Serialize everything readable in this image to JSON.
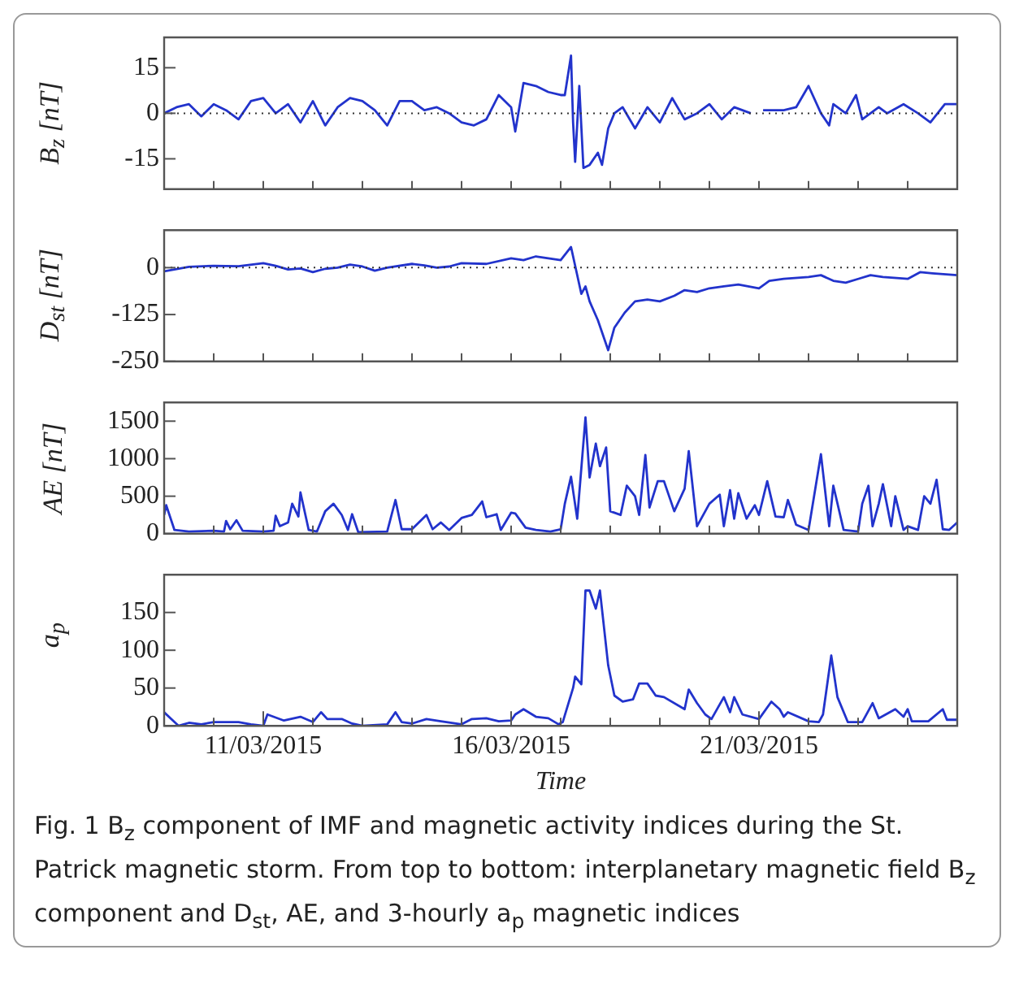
{
  "chart_data": [
    {
      "type": "line",
      "ylabel": "B$_{z}$ [nT]",
      "color": "#2233cc",
      "tick_labels": "y",
      "xlim": [
        "2015-03-09",
        "2015-03-25"
      ],
      "ylim": [
        -25,
        25
      ],
      "yticks": [
        -15,
        0,
        15
      ],
      "xticks": [
        {
          "value": "2015-03-10",
          "label": null
        },
        {
          "value": "2015-03-11",
          "label": null
        },
        {
          "value": "2015-03-12",
          "label": null
        },
        {
          "value": "2015-03-13",
          "label": null
        },
        {
          "value": "2015-03-14",
          "label": null
        },
        {
          "value": "2015-03-15",
          "label": null
        },
        {
          "value": "2015-03-16",
          "label": null
        },
        {
          "value": "2015-03-17",
          "label": null
        },
        {
          "value": "2015-03-18",
          "label": null
        },
        {
          "value": "2015-03-19",
          "label": null
        },
        {
          "value": "2015-03-20",
          "label": null
        },
        {
          "value": "2015-03-21",
          "label": null
        },
        {
          "value": "2015-03-22",
          "label": null
        },
        {
          "value": "2015-03-23",
          "label": null
        },
        {
          "value": "2015-03-24",
          "label": null
        }
      ],
      "ref_lines": [
        {
          "axis": "y",
          "value": 0,
          "color": "#333333",
          "line_style": "dotted"
        }
      ],
      "x": [
        "2015-03-09T00:00",
        "2015-03-09T06:00",
        "2015-03-09T12:00",
        "2015-03-09T18:00",
        "2015-03-10T00:00",
        "2015-03-10T06:00",
        "2015-03-10T12:00",
        "2015-03-10T18:00",
        "2015-03-11T00:00",
        "2015-03-11T06:00",
        "2015-03-11T12:00",
        "2015-03-11T18:00",
        "2015-03-12T00:00",
        "2015-03-12T06:00",
        "2015-03-12T12:00",
        "2015-03-12T18:00",
        "2015-03-13T00:00",
        "2015-03-13T06:00",
        "2015-03-13T12:00",
        "2015-03-13T18:00",
        "2015-03-14T00:00",
        "2015-03-14T06:00",
        "2015-03-14T12:00",
        "2015-03-14T18:00",
        "2015-03-15T00:00",
        "2015-03-15T06:00",
        "2015-03-15T12:00",
        "2015-03-15T18:00",
        "2015-03-16T00:00",
        "2015-03-16T02:00",
        "2015-03-16T06:00",
        "2015-03-16T12:00",
        "2015-03-16T18:00",
        "2015-03-17T00:00",
        "2015-03-17T02:00",
        "2015-03-17T05:00",
        "2015-03-17T06:00",
        "2015-03-17T07:00",
        "2015-03-17T09:00",
        "2015-03-17T11:00",
        "2015-03-17T14:00",
        "2015-03-17T18:00",
        "2015-03-17T20:00",
        "2015-03-17T23:00",
        "2015-03-18T02:00",
        "2015-03-18T06:00",
        "2015-03-18T12:00",
        "2015-03-18T18:00",
        "2015-03-19T00:00",
        "2015-03-19T06:00",
        "2015-03-19T12:00",
        "2015-03-19T18:00",
        "2015-03-20T00:00",
        "2015-03-20T06:00",
        "2015-03-20T12:00",
        "2015-03-20T20:00",
        "2015-03-20T22:00",
        "2015-03-21T02:00",
        "2015-03-21T12:00",
        "2015-03-21T18:00",
        "2015-03-22T00:00",
        "2015-03-22T06:00",
        "2015-03-22T10:00",
        "2015-03-22T12:00",
        "2015-03-22T18:00",
        "2015-03-22T23:00",
        "2015-03-23T02:00",
        "2015-03-23T10:00",
        "2015-03-23T14:00",
        "2015-03-23T22:00",
        "2015-03-24T05:00",
        "2015-03-24T11:00",
        "2015-03-24T18:00",
        "2015-03-25T00:00"
      ],
      "values": [
        0,
        2,
        3,
        -1,
        3,
        1,
        -2,
        4,
        5,
        0,
        3,
        -3,
        4,
        -4,
        2,
        5,
        4,
        1,
        -4,
        4,
        4,
        1,
        2,
        0,
        -3,
        -4,
        -2,
        6,
        2,
        -6,
        10,
        9,
        7,
        6,
        6,
        19,
        -3,
        -16,
        9,
        -18,
        -17,
        -13,
        -17,
        -5,
        0,
        2,
        -5,
        2,
        -3,
        5,
        -2,
        0,
        3,
        -2,
        2,
        0,
        null,
        1,
        1,
        2,
        9,
        0,
        -4,
        3,
        0,
        6,
        -2,
        2,
        0,
        3,
        0,
        -3,
        3,
        3
      ]
    },
    {
      "type": "line",
      "ylabel": "D$_{st}$ [nT]",
      "color": "#2233cc",
      "tick_labels": "y",
      "xlim": [
        "2015-03-09",
        "2015-03-25"
      ],
      "ylim": [
        -250,
        100
      ],
      "yticks": [
        -250,
        -125,
        0
      ],
      "xticks": [
        {
          "value": "2015-03-10",
          "label": null
        },
        {
          "value": "2015-03-11",
          "label": null
        },
        {
          "value": "2015-03-12",
          "label": null
        },
        {
          "value": "2015-03-13",
          "label": null
        },
        {
          "value": "2015-03-14",
          "label": null
        },
        {
          "value": "2015-03-15",
          "label": null
        },
        {
          "value": "2015-03-16",
          "label": null
        },
        {
          "value": "2015-03-17",
          "label": null
        },
        {
          "value": "2015-03-18",
          "label": null
        },
        {
          "value": "2015-03-19",
          "label": null
        },
        {
          "value": "2015-03-20",
          "label": null
        },
        {
          "value": "2015-03-21",
          "label": null
        },
        {
          "value": "2015-03-22",
          "label": null
        },
        {
          "value": "2015-03-23",
          "label": null
        },
        {
          "value": "2015-03-24",
          "label": null
        }
      ],
      "ref_lines": [
        {
          "axis": "y",
          "value": 0,
          "color": "#333333",
          "line_style": "dotted"
        }
      ],
      "x": [
        "2015-03-09T00:00",
        "2015-03-09T12:00",
        "2015-03-10T00:00",
        "2015-03-10T12:00",
        "2015-03-11T00:00",
        "2015-03-11T06:00",
        "2015-03-11T12:00",
        "2015-03-11T18:00",
        "2015-03-12T00:00",
        "2015-03-12T06:00",
        "2015-03-12T12:00",
        "2015-03-12T18:00",
        "2015-03-13T00:00",
        "2015-03-13T06:00",
        "2015-03-13T12:00",
        "2015-03-14T00:00",
        "2015-03-14T06:00",
        "2015-03-14T12:00",
        "2015-03-14T18:00",
        "2015-03-15T00:00",
        "2015-03-15T12:00",
        "2015-03-16T00:00",
        "2015-03-16T06:00",
        "2015-03-16T12:00",
        "2015-03-16T18:00",
        "2015-03-17T00:00",
        "2015-03-17T05:00",
        "2015-03-17T07:00",
        "2015-03-17T10:00",
        "2015-03-17T12:00",
        "2015-03-17T14:00",
        "2015-03-17T18:00",
        "2015-03-17T23:00",
        "2015-03-18T02:00",
        "2015-03-18T07:00",
        "2015-03-18T12:00",
        "2015-03-18T18:00",
        "2015-03-19T00:00",
        "2015-03-19T07:00",
        "2015-03-19T12:00",
        "2015-03-19T18:00",
        "2015-03-20T00:00",
        "2015-03-20T07:00",
        "2015-03-20T14:00",
        "2015-03-21T00:00",
        "2015-03-21T05:00",
        "2015-03-21T12:00",
        "2015-03-22T00:00",
        "2015-03-22T06:00",
        "2015-03-22T12:00",
        "2015-03-22T18:00",
        "2015-03-23T00:00",
        "2015-03-23T06:00",
        "2015-03-23T12:00",
        "2015-03-24T00:00",
        "2015-03-24T06:00",
        "2015-03-24T12:00",
        "2015-03-25T00:00"
      ],
      "values": [
        -10,
        2,
        5,
        4,
        12,
        5,
        -5,
        -2,
        -12,
        -3,
        0,
        8,
        3,
        -8,
        0,
        10,
        6,
        0,
        3,
        12,
        10,
        25,
        20,
        30,
        25,
        20,
        55,
        5,
        -70,
        -50,
        -90,
        -140,
        -220,
        -160,
        -120,
        -90,
        -85,
        -90,
        -75,
        -60,
        -65,
        -55,
        -50,
        -45,
        -55,
        -35,
        -30,
        -25,
        -20,
        -35,
        -40,
        -30,
        -20,
        -25,
        -30,
        -12,
        -15,
        -20
      ]
    },
    {
      "type": "line",
      "ylabel": "AE [nT]",
      "color": "#2233cc",
      "tick_labels": "y",
      "xlim": [
        "2015-03-09",
        "2015-03-25"
      ],
      "ylim": [
        0,
        1750
      ],
      "yticks": [
        0,
        500,
        1000,
        1500
      ],
      "xticks": [
        {
          "value": "2015-03-10",
          "label": null
        },
        {
          "value": "2015-03-11",
          "label": null
        },
        {
          "value": "2015-03-12",
          "label": null
        },
        {
          "value": "2015-03-13",
          "label": null
        },
        {
          "value": "2015-03-14",
          "label": null
        },
        {
          "value": "2015-03-15",
          "label": null
        },
        {
          "value": "2015-03-16",
          "label": null
        },
        {
          "value": "2015-03-17",
          "label": null
        },
        {
          "value": "2015-03-18",
          "label": null
        },
        {
          "value": "2015-03-19",
          "label": null
        },
        {
          "value": "2015-03-20",
          "label": null
        },
        {
          "value": "2015-03-21",
          "label": null
        },
        {
          "value": "2015-03-22",
          "label": null
        },
        {
          "value": "2015-03-23",
          "label": null
        },
        {
          "value": "2015-03-24",
          "label": null
        }
      ],
      "x": [
        "2015-03-09T00:00",
        "2015-03-09T01:00",
        "2015-03-09T05:00",
        "2015-03-09T12:00",
        "2015-03-10T00:00",
        "2015-03-10T05:00",
        "2015-03-10T06:00",
        "2015-03-10T08:00",
        "2015-03-10T11:00",
        "2015-03-10T14:00",
        "2015-03-11T00:00",
        "2015-03-11T05:00",
        "2015-03-11T06:00",
        "2015-03-11T08:00",
        "2015-03-11T12:00",
        "2015-03-11T14:00",
        "2015-03-11T17:00",
        "2015-03-11T18:00",
        "2015-03-11T22:00",
        "2015-03-12T02:00",
        "2015-03-12T06:00",
        "2015-03-12T10:00",
        "2015-03-12T14:00",
        "2015-03-12T17:00",
        "2015-03-12T19:00",
        "2015-03-12T22:00",
        "2015-03-13T12:00",
        "2015-03-13T16:00",
        "2015-03-13T19:00",
        "2015-03-14T00:00",
        "2015-03-14T07:00",
        "2015-03-14T10:00",
        "2015-03-14T14:00",
        "2015-03-14T18:00",
        "2015-03-15T00:00",
        "2015-03-15T05:00",
        "2015-03-15T10:00",
        "2015-03-15T12:00",
        "2015-03-15T17:00",
        "2015-03-15T19:00",
        "2015-03-16T00:00",
        "2015-03-16T02:00",
        "2015-03-16T07:00",
        "2015-03-16T12:00",
        "2015-03-16T19:00",
        "2015-03-17T00:00",
        "2015-03-17T02:00",
        "2015-03-17T05:00",
        "2015-03-17T08:00",
        "2015-03-17T12:00",
        "2015-03-17T14:00",
        "2015-03-17T17:00",
        "2015-03-17T19:00",
        "2015-03-17T22:00",
        "2015-03-18T00:00",
        "2015-03-18T05:00",
        "2015-03-18T08:00",
        "2015-03-18T12:00",
        "2015-03-18T14:00",
        "2015-03-18T17:00",
        "2015-03-18T19:00",
        "2015-03-18T23:00",
        "2015-03-19T02:00",
        "2015-03-19T07:00",
        "2015-03-19T12:00",
        "2015-03-19T14:00",
        "2015-03-19T18:00",
        "2015-03-20T00:00",
        "2015-03-20T05:00",
        "2015-03-20T07:00",
        "2015-03-20T10:00",
        "2015-03-20T12:00",
        "2015-03-20T14:00",
        "2015-03-20T18:00",
        "2015-03-20T22:00",
        "2015-03-21T00:00",
        "2015-03-21T04:00",
        "2015-03-21T08:00",
        "2015-03-21T12:00",
        "2015-03-21T14:00",
        "2015-03-21T18:00",
        "2015-03-22T00:00",
        "2015-03-22T06:00",
        "2015-03-22T10:00",
        "2015-03-22T12:00",
        "2015-03-22T17:00",
        "2015-03-23T00:00",
        "2015-03-23T02:00",
        "2015-03-23T05:00",
        "2015-03-23T07:00",
        "2015-03-23T10:00",
        "2015-03-23T12:00",
        "2015-03-23T16:00",
        "2015-03-23T18:00",
        "2015-03-23T22:00",
        "2015-03-24T00:00",
        "2015-03-24T05:00",
        "2015-03-24T08:00",
        "2015-03-24T11:00",
        "2015-03-24T14:00",
        "2015-03-24T17:00",
        "2015-03-24T20:00",
        "2015-03-25T00:00"
      ],
      "values": [
        250,
        380,
        50,
        30,
        40,
        30,
        170,
        60,
        180,
        40,
        30,
        40,
        240,
        100,
        150,
        400,
        230,
        550,
        50,
        30,
        300,
        400,
        250,
        50,
        260,
        20,
        30,
        450,
        60,
        60,
        250,
        60,
        150,
        50,
        210,
        250,
        430,
        220,
        260,
        50,
        280,
        270,
        80,
        50,
        30,
        60,
        400,
        760,
        200,
        1550,
        750,
        1200,
        900,
        1150,
        300,
        250,
        640,
        500,
        250,
        1050,
        350,
        700,
        700,
        300,
        600,
        1100,
        100,
        400,
        520,
        100,
        580,
        200,
        540,
        200,
        380,
        250,
        700,
        230,
        220,
        450,
        120,
        50,
        1060,
        100,
        640,
        50,
        30,
        400,
        640,
        100,
        400,
        660,
        100,
        500,
        50,
        100,
        50,
        500,
        400,
        720,
        60,
        50,
        150
      ]
    },
    {
      "type": "line",
      "ylabel": "a$_{p}$",
      "xlabel": "Time",
      "color": "#2233cc",
      "xlim": [
        "2015-03-09",
        "2015-03-25"
      ],
      "ylim": [
        0,
        200
      ],
      "yticks": [
        0,
        50,
        100,
        150
      ],
      "xticks": [
        {
          "value": "2015-03-10",
          "label": null
        },
        {
          "value": "2015-03-11",
          "label": "11/03/2015"
        },
        {
          "value": "2015-03-12",
          "label": null
        },
        {
          "value": "2015-03-13",
          "label": null
        },
        {
          "value": "2015-03-14",
          "label": null
        },
        {
          "value": "2015-03-15",
          "label": null
        },
        {
          "value": "2015-03-16",
          "label": "16/03/2015"
        },
        {
          "value": "2015-03-17",
          "label": null
        },
        {
          "value": "2015-03-18",
          "label": null
        },
        {
          "value": "2015-03-19",
          "label": null
        },
        {
          "value": "2015-03-20",
          "label": null
        },
        {
          "value": "2015-03-21",
          "label": "21/03/2015"
        },
        {
          "value": "2015-03-22",
          "label": null
        },
        {
          "value": "2015-03-23",
          "label": null
        },
        {
          "value": "2015-03-24",
          "label": null
        }
      ],
      "annotations": [
        "Fig. 1  B$_{z}$ component of IMF and magnetic activity indices during the St. Patrick magnetic storm. From top to bottom: interplanetary magnetic field B$_{z}$ component and D$_{st}$, AE, and 3-hourly a$_{p}$ magnetic indices"
      ],
      "x": [
        "2015-03-09T00:00",
        "2015-03-09T05:00",
        "2015-03-09T07:00",
        "2015-03-09T12:00",
        "2015-03-09T18:00",
        "2015-03-10T00:00",
        "2015-03-10T12:00",
        "2015-03-10T18:00",
        "2015-03-11T00:00",
        "2015-03-11T02:00",
        "2015-03-11T10:00",
        "2015-03-11T18:00",
        "2015-03-12T00:00",
        "2015-03-12T04:00",
        "2015-03-12T07:00",
        "2015-03-12T14:00",
        "2015-03-12T19:00",
        "2015-03-13T00:00",
        "2015-03-13T12:00",
        "2015-03-13T16:00",
        "2015-03-13T19:00",
        "2015-03-14T00:00",
        "2015-03-14T07:00",
        "2015-03-14T14:00",
        "2015-03-15T00:00",
        "2015-03-15T05:00",
        "2015-03-15T12:00",
        "2015-03-15T18:00",
        "2015-03-16T00:00",
        "2015-03-16T02:00",
        "2015-03-16T06:00",
        "2015-03-16T12:00",
        "2015-03-16T18:00",
        "2015-03-16T23:00",
        "2015-03-17T01:00",
        "2015-03-17T06:00",
        "2015-03-17T07:00",
        "2015-03-17T10:00",
        "2015-03-17T12:00",
        "2015-03-17T14:00",
        "2015-03-17T17:00",
        "2015-03-17T19:00",
        "2015-03-17T23:00",
        "2015-03-18T02:00",
        "2015-03-18T06:00",
        "2015-03-18T11:00",
        "2015-03-18T14:00",
        "2015-03-18T18:00",
        "2015-03-18T22:00",
        "2015-03-19T02:00",
        "2015-03-19T12:00",
        "2015-03-19T14:00",
        "2015-03-19T18:00",
        "2015-03-19T22:00",
        "2015-03-20T01:00",
        "2015-03-20T07:00",
        "2015-03-20T10:00",
        "2015-03-20T12:00",
        "2015-03-20T16:00",
        "2015-03-21T00:00",
        "2015-03-21T06:00",
        "2015-03-21T10:00",
        "2015-03-21T12:00",
        "2015-03-21T14:00",
        "2015-03-22T00:00",
        "2015-03-22T05:00",
        "2015-03-22T07:00",
        "2015-03-22T11:00",
        "2015-03-22T14:00",
        "2015-03-22T19:00",
        "2015-03-23T02:00",
        "2015-03-23T07:00",
        "2015-03-23T10:00",
        "2015-03-23T18:00",
        "2015-03-23T22:00",
        "2015-03-24T00:00",
        "2015-03-24T02:00",
        "2015-03-24T10:00",
        "2015-03-24T17:00",
        "2015-03-24T19:00",
        "2015-03-25T00:00"
      ],
      "values": [
        18,
        5,
        0,
        4,
        2,
        5,
        5,
        2,
        0,
        15,
        7,
        12,
        5,
        18,
        9,
        9,
        3,
        0,
        2,
        18,
        5,
        3,
        9,
        6,
        2,
        9,
        10,
        6,
        7,
        15,
        22,
        12,
        10,
        2,
        5,
        50,
        65,
        55,
        179,
        179,
        155,
        179,
        80,
        40,
        32,
        35,
        56,
        56,
        40,
        38,
        22,
        48,
        30,
        15,
        9,
        38,
        18,
        38,
        15,
        9,
        32,
        22,
        12,
        18,
        6,
        5,
        15,
        93,
        38,
        5,
        5,
        30,
        10,
        22,
        12,
        22,
        6,
        6,
        22,
        8,
        8
      ]
    }
  ]
}
